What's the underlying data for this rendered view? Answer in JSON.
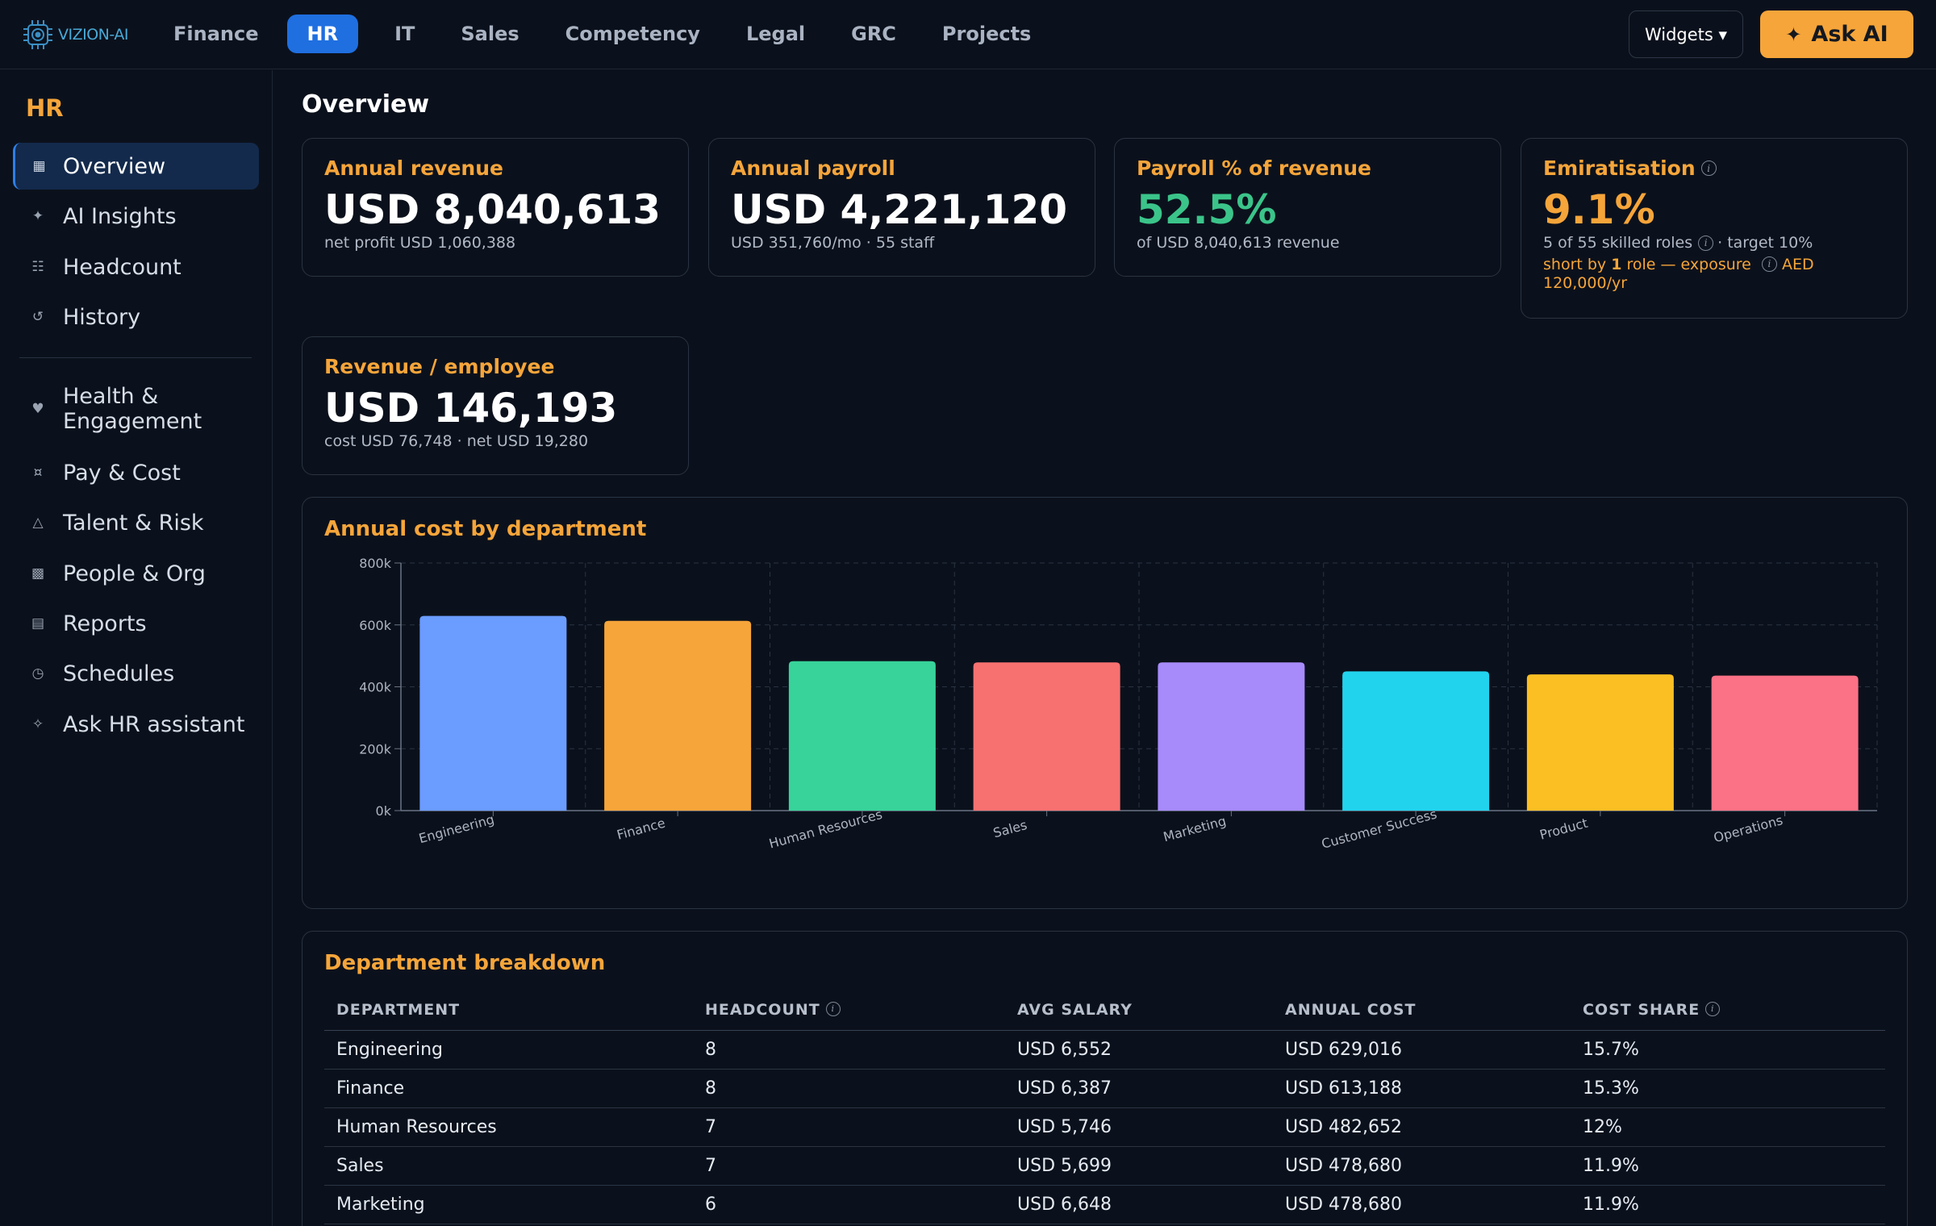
{
  "app": {
    "logo_text": "VIZION-AI"
  },
  "top_nav": {
    "items": [
      "Finance",
      "HR",
      "IT",
      "Sales",
      "Competency",
      "Legal",
      "GRC",
      "Projects"
    ],
    "active": "HR",
    "widgets_label": "Widgets ▾",
    "ask_ai_label": "Ask AI"
  },
  "sidebar": {
    "title": "HR",
    "items": [
      {
        "label": "Overview",
        "icon": "grid-icon"
      },
      {
        "label": "AI Insights",
        "icon": "sparkle-icon"
      },
      {
        "label": "Headcount",
        "icon": "list-icon"
      },
      {
        "label": "History",
        "icon": "history-icon"
      },
      {
        "label": "Health & Engagement",
        "icon": "heart-icon"
      },
      {
        "label": "Pay & Cost",
        "icon": "currency-icon"
      },
      {
        "label": "Talent & Risk",
        "icon": "warning-icon"
      },
      {
        "label": "People & Org",
        "icon": "org-icon"
      },
      {
        "label": "Reports",
        "icon": "report-icon"
      },
      {
        "label": "Schedules",
        "icon": "clock-icon"
      },
      {
        "label": "Ask HR assistant",
        "icon": "assistant-icon"
      }
    ],
    "active": "Overview"
  },
  "page": {
    "title": "Overview"
  },
  "kpis": {
    "annual_revenue": {
      "label": "Annual revenue",
      "value": "USD 8,040,613",
      "sub": "net profit USD 1,060,388"
    },
    "annual_payroll": {
      "label": "Annual payroll",
      "value": "USD 4,221,120",
      "sub": "USD 351,760/mo · 55 staff"
    },
    "payroll_pct": {
      "label": "Payroll % of revenue",
      "value": "52.5%",
      "sub": "of USD 8,040,613 revenue"
    },
    "emiratisation": {
      "label": "Emiratisation",
      "value": "9.1%",
      "sub_a": "5 of 55 skilled roles",
      "sub_b": "· target 10%",
      "note_a": "short by ",
      "note_b": "1",
      "note_c": " role — exposure",
      "note_d": "AED 120,000/yr"
    },
    "revenue_per_employee": {
      "label": "Revenue / employee",
      "value": "USD 146,193",
      "sub": "cost USD 76,748 · net USD 19,280"
    }
  },
  "chart_panel": {
    "title": "Annual cost by department"
  },
  "chart_data": {
    "type": "bar",
    "title": "Annual cost by department",
    "categories": [
      "Engineering",
      "Finance",
      "Human Resources",
      "Sales",
      "Marketing",
      "Customer Success",
      "Product",
      "Operations"
    ],
    "values": [
      629016,
      613188,
      482652,
      478680,
      478680,
      450000,
      440000,
      436000
    ],
    "ylim": [
      0,
      800000
    ],
    "yticks": [
      0,
      200000,
      400000,
      600000,
      800000
    ],
    "ytick_labels": [
      "0k",
      "200k",
      "400k",
      "600k",
      "800k"
    ],
    "grid": true,
    "colors": [
      "#6b9cff",
      "#f6a53a",
      "#38d39a",
      "#f87171",
      "#a78bfa",
      "#22d3ee",
      "#fbbf24",
      "#fb7185"
    ]
  },
  "table": {
    "title": "Department breakdown",
    "headers": [
      "DEPARTMENT",
      "HEADCOUNT",
      "AVG SALARY",
      "ANNUAL COST",
      "COST SHARE"
    ],
    "rows": [
      [
        "Engineering",
        "8",
        "USD 6,552",
        "USD 629,016",
        "15.7%"
      ],
      [
        "Finance",
        "8",
        "USD 6,387",
        "USD 613,188",
        "15.3%"
      ],
      [
        "Human Resources",
        "7",
        "USD 5,746",
        "USD 482,652",
        "12%"
      ],
      [
        "Sales",
        "7",
        "USD 5,699",
        "USD 478,680",
        "11.9%"
      ],
      [
        "Marketing",
        "6",
        "USD 6,648",
        "USD 478,680",
        "11.9%"
      ]
    ]
  },
  "colors": {
    "background": "#0b111c",
    "accent": "#f6a53a",
    "active_tab": "#1f6fe0",
    "positive": "#3bc48a"
  }
}
